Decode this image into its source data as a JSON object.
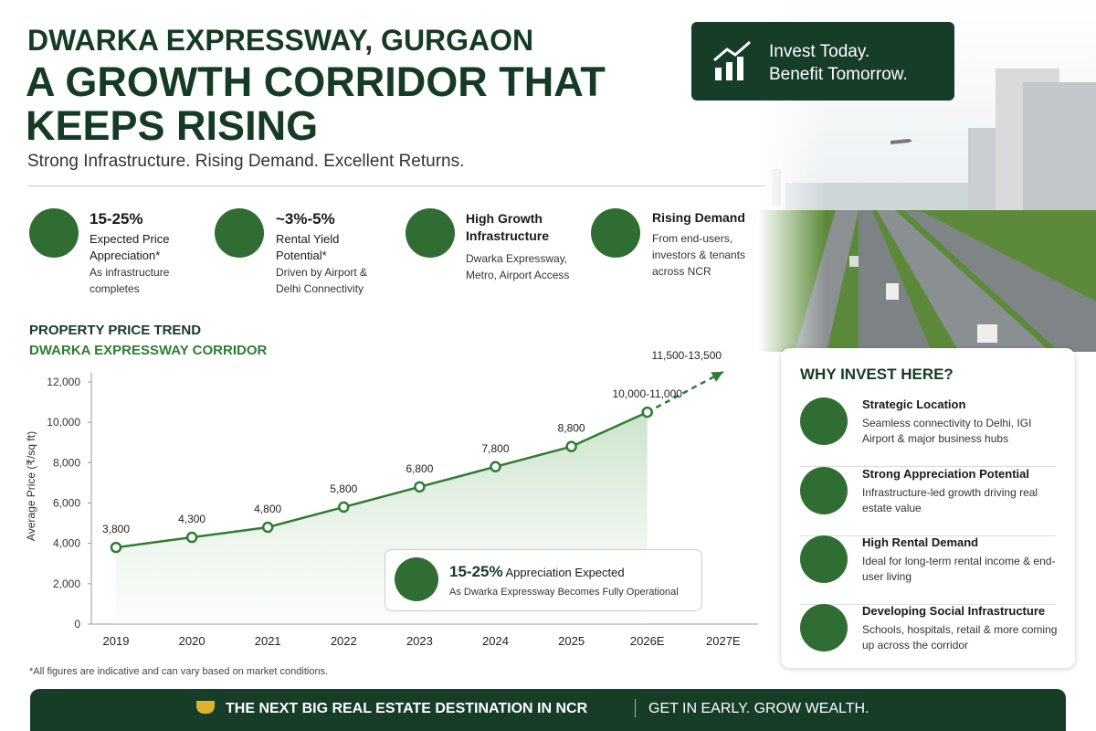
{
  "header": {
    "title": "DWARKA EXPRESSWAY, GURGAON",
    "headline_1": "A GROWTH CORRIDOR THAT",
    "headline_2": "KEEPS RISING",
    "tagline": "Strong Infrastructure. Rising Demand. Excellent Returns."
  },
  "badge": {
    "line_1": "Invest Today.",
    "line_2": "Benefit Tomorrow."
  },
  "stats": [
    {
      "title": "15-25%",
      "subtitle": "Expected Price Appreciation*",
      "detail": "As infrastructure completes"
    },
    {
      "title": "~3%-5%",
      "subtitle": "Rental Yield Potential*",
      "detail": "Driven by Airport & Delhi Connectivity"
    },
    {
      "title": "High Growth Infrastructure",
      "detail": "Dwarka Expressway, Metro, Airport Access"
    },
    {
      "title": "Rising Demand",
      "detail": "From end-users, investors & tenants across NCR"
    }
  ],
  "chart_data": {
    "type": "line",
    "title": "PROPERTY PRICE TREND",
    "subtitle": "DWARKA EXPRESSWAY CORRIDOR",
    "y_label": "Average Price (₹/sq ft)",
    "categories": [
      "2019",
      "2020",
      "2021",
      "2022",
      "2023",
      "2024",
      "2025",
      "2026E",
      "2027E"
    ],
    "values": [
      3800,
      4300,
      4800,
      5800,
      6800,
      7800,
      8800,
      10500,
      12500
    ],
    "value_labels": [
      "3,800",
      "4,300",
      "4,800",
      "5,800",
      "6,800",
      "7,800",
      "8,800",
      "10,000-11,000",
      "11,500-13,500"
    ],
    "color": "#2e7d32",
    "ylim": [
      0,
      12000
    ],
    "yticks": [
      0,
      {
        "value": 2000,
        "label": "2,000"
      },
      {
        "value": 4000,
        "label": "4,000"
      },
      {
        "value": 6000,
        "label": "6,000"
      },
      {
        "value": 8000,
        "label": "8,000"
      },
      {
        "value": 10000,
        "label": "10,000"
      },
      {
        "value": 12000,
        "label": "12,000"
      }
    ]
  },
  "callout": {
    "highlight": "15-25%",
    "text": "Appreciation Expected",
    "subtext": "As Dwarka Expressway Becomes Fully Operational"
  },
  "why": {
    "title": "WHY INVEST HERE?",
    "items": [
      {
        "title": "Strategic Location",
        "text": "Seamless connectivity to Delhi, IGI Airport & major business hubs"
      },
      {
        "title": "Strong Appreciation Potential",
        "text": "Infrastructure-led growth driving real estate value"
      },
      {
        "title": "High Rental Demand",
        "text": "Ideal for long-term rental income & end-user living"
      },
      {
        "title": "Developing Social Infrastructure",
        "text": "Schools, hospitals, retail & more coming up across the corridor"
      }
    ]
  },
  "footnote": "*All figures are indicative and can vary based on market conditions.",
  "footer": {
    "left": "THE NEXT BIG REAL ESTATE DESTINATION IN NCR",
    "right": "GET IN EARLY. GROW WEALTH."
  }
}
